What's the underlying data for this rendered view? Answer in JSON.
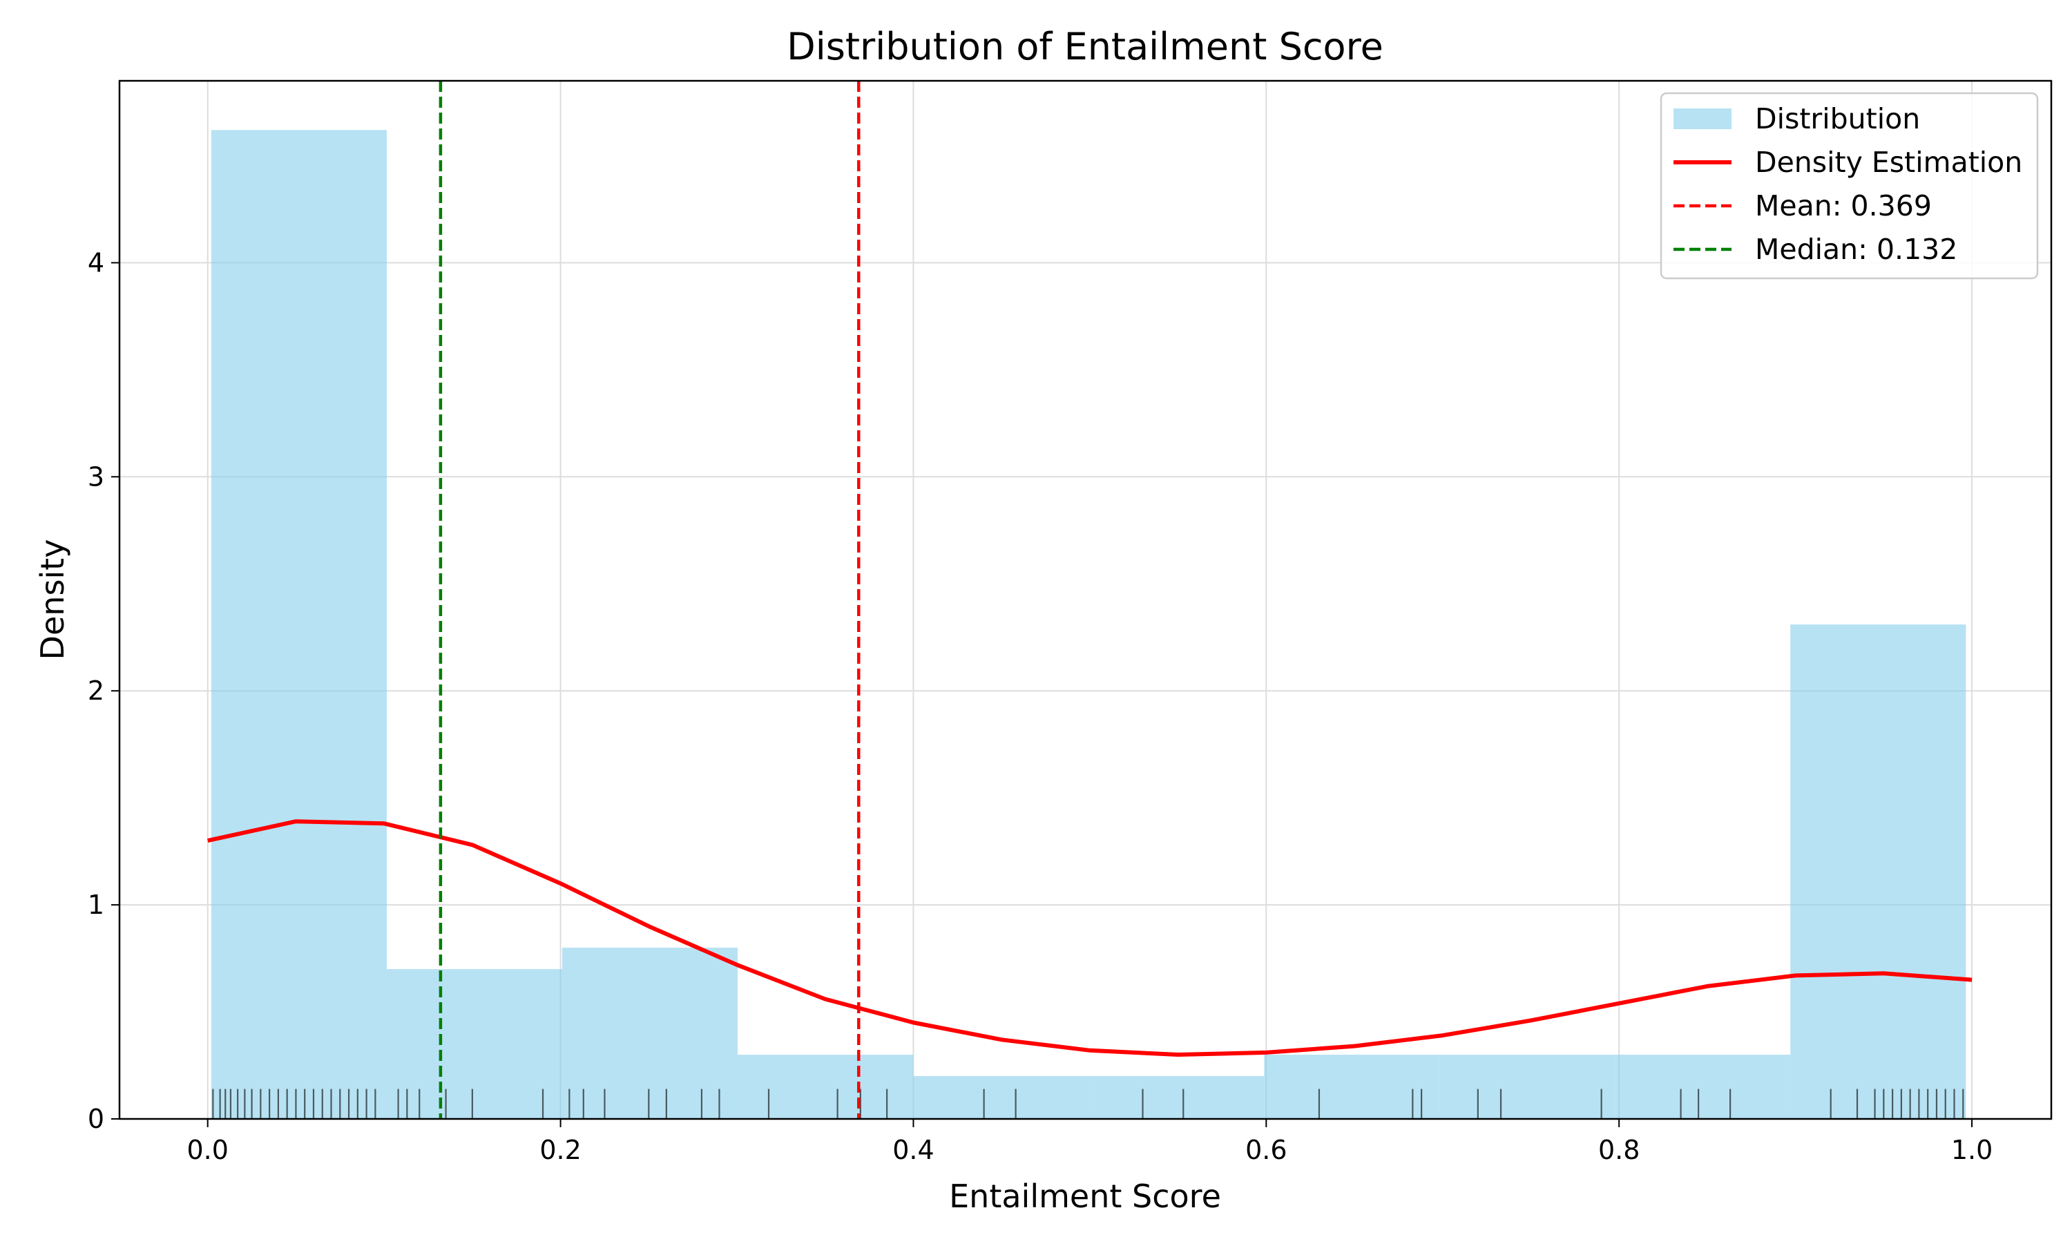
{
  "chart_data": {
    "type": "bar",
    "title": "Distribution of Entailment Score",
    "xlabel": "Entailment Score",
    "ylabel": "Density",
    "xlim": [
      -0.05,
      1.045
    ],
    "ylim": [
      0,
      4.85
    ],
    "xticks": [
      "0.0",
      "0.2",
      "0.4",
      "0.6",
      "0.8",
      "1.0"
    ],
    "yticks": [
      "0",
      "1",
      "2",
      "3",
      "4"
    ],
    "grid": true,
    "legend_position": "top-right",
    "histogram": {
      "name": "Distribution",
      "color": "#87ceeb",
      "bins": [
        {
          "x0": 0.002,
          "x1": 0.1015,
          "density": 4.62
        },
        {
          "x0": 0.1015,
          "x1": 0.2009,
          "density": 0.7
        },
        {
          "x0": 0.2009,
          "x1": 0.3004,
          "density": 0.8
        },
        {
          "x0": 0.3004,
          "x1": 0.3999,
          "density": 0.3
        },
        {
          "x0": 0.3999,
          "x1": 0.4993,
          "density": 0.2
        },
        {
          "x0": 0.4993,
          "x1": 0.5988,
          "density": 0.2
        },
        {
          "x0": 0.5988,
          "x1": 0.6982,
          "density": 0.3
        },
        {
          "x0": 0.6982,
          "x1": 0.7977,
          "density": 0.3
        },
        {
          "x0": 0.7977,
          "x1": 0.8971,
          "density": 0.3
        },
        {
          "x0": 0.8971,
          "x1": 0.9966,
          "density": 2.31
        }
      ]
    },
    "density_line": {
      "name": "Density Estimation",
      "color": "#ff0000",
      "x": [
        0.0,
        0.05,
        0.1,
        0.15,
        0.2,
        0.25,
        0.3,
        0.35,
        0.4,
        0.45,
        0.5,
        0.55,
        0.6,
        0.65,
        0.7,
        0.75,
        0.8,
        0.85,
        0.9,
        0.95,
        1.0
      ],
      "y": [
        1.3,
        1.39,
        1.38,
        1.28,
        1.1,
        0.9,
        0.72,
        0.56,
        0.45,
        0.37,
        0.32,
        0.3,
        0.31,
        0.34,
        0.39,
        0.46,
        0.54,
        0.62,
        0.67,
        0.68,
        0.65
      ]
    },
    "reference_lines": [
      {
        "name": "Mean: 0.369",
        "value": 0.369,
        "color": "#ff0000"
      },
      {
        "name": "Median: 0.132",
        "value": 0.132,
        "color": "#008000"
      }
    ],
    "rug": [
      0.003,
      0.007,
      0.01,
      0.013,
      0.017,
      0.021,
      0.025,
      0.03,
      0.035,
      0.04,
      0.045,
      0.05,
      0.055,
      0.06,
      0.065,
      0.07,
      0.075,
      0.08,
      0.085,
      0.09,
      0.095,
      0.108,
      0.113,
      0.12,
      0.135,
      0.15,
      0.19,
      0.205,
      0.213,
      0.225,
      0.25,
      0.26,
      0.28,
      0.29,
      0.318,
      0.357,
      0.37,
      0.385,
      0.44,
      0.458,
      0.53,
      0.553,
      0.63,
      0.683,
      0.688,
      0.72,
      0.733,
      0.79,
      0.835,
      0.845,
      0.863,
      0.92,
      0.935,
      0.945,
      0.95,
      0.955,
      0.96,
      0.965,
      0.97,
      0.975,
      0.98,
      0.985,
      0.99,
      0.995
    ],
    "legend": [
      {
        "label": "Distribution",
        "kind": "patch",
        "color": "#87ceeb"
      },
      {
        "label": "Density Estimation",
        "kind": "line",
        "color": "#ff0000"
      },
      {
        "label": "Mean: 0.369",
        "kind": "dashed",
        "color": "#ff0000"
      },
      {
        "label": "Median: 0.132",
        "kind": "dashed",
        "color": "#008000"
      }
    ]
  }
}
